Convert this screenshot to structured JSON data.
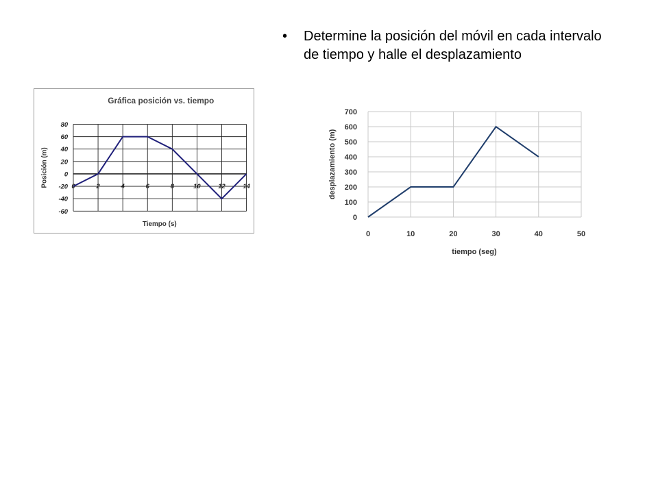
{
  "slide": {
    "bullet_symbol": "•",
    "bullet_text": "Determine la posición del móvil en cada intervalo de tiempo y halle el desplazamiento"
  },
  "chart_data": [
    {
      "type": "line",
      "title": "Gráfica posición vs. tiempo",
      "xlabel": "Tiempo (s)",
      "ylabel": "Posición (m)",
      "xlim": [
        0,
        14
      ],
      "ylim": [
        -60,
        80
      ],
      "xticks": [
        0,
        2,
        4,
        6,
        8,
        10,
        12,
        14
      ],
      "xtick_labels": [
        "0",
        "2",
        "4",
        "6",
        "8",
        "10",
        "12",
        "14"
      ],
      "yticks": [
        -60,
        -40,
        -20,
        0,
        20,
        40,
        60,
        80
      ],
      "ytick_labels": [
        "-60",
        "-40",
        "-20",
        "0",
        "20",
        "40",
        "60",
        "80"
      ],
      "grid": true,
      "line_color": "#1f1f7a",
      "x": [
        0,
        2,
        4,
        6,
        8,
        10,
        12,
        14
      ],
      "y": [
        -20,
        0,
        60,
        60,
        40,
        0,
        -40,
        0
      ]
    },
    {
      "type": "line",
      "title": "",
      "xlabel": "tiempo (seg)",
      "ylabel": "desplazamiento (m)",
      "xlim": [
        0,
        50
      ],
      "ylim": [
        0,
        700
      ],
      "xticks": [
        0,
        10,
        20,
        30,
        40,
        50
      ],
      "xtick_labels": [
        "0",
        "10",
        "20",
        "30",
        "40",
        "50"
      ],
      "yticks": [
        0,
        100,
        200,
        300,
        400,
        500,
        600,
        700
      ],
      "ytick_labels": [
        "0",
        "100",
        "200",
        "300",
        "400",
        "500",
        "600",
        "700"
      ],
      "grid": true,
      "line_color": "#1f3d6b",
      "x": [
        0,
        10,
        20,
        30,
        40
      ],
      "y": [
        0,
        200,
        200,
        600,
        400
      ]
    }
  ]
}
